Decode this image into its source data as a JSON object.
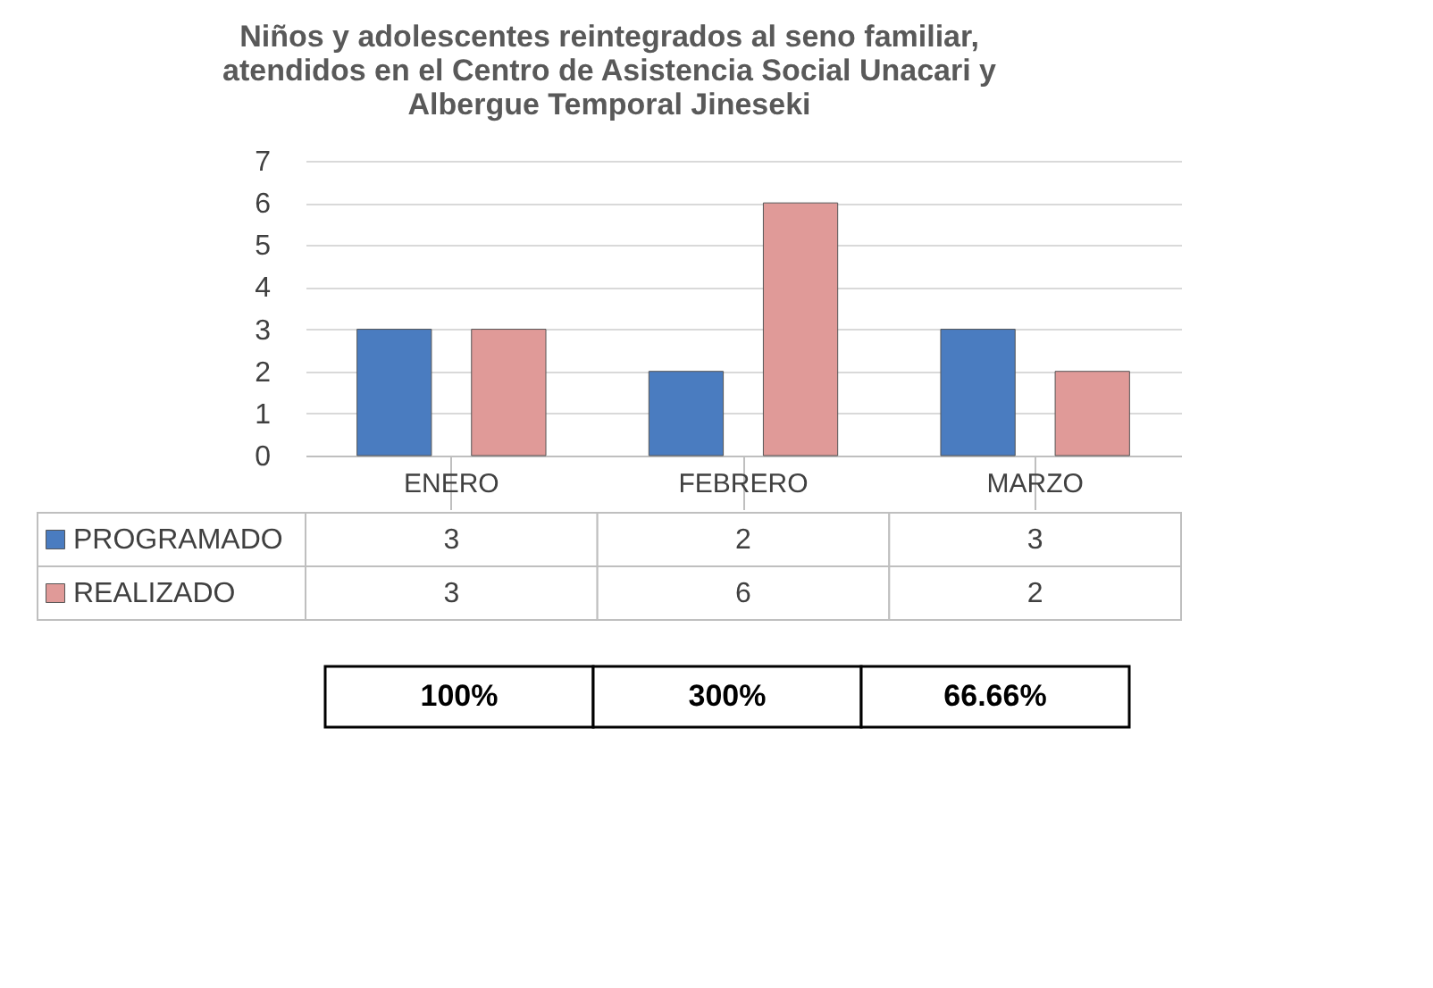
{
  "chart_data": {
    "type": "bar",
    "title": [
      "Niños y adolescentes reintegrados al seno familiar,",
      "atendidos en el Centro de Asistencia Social  Unacari y",
      "Albergue Temporal Jineseki"
    ],
    "categories": [
      "ENERO",
      "FEBRERO",
      "MARZO"
    ],
    "series": [
      {
        "name": "PROGRAMADO",
        "color": "#4a7cc0",
        "values": [
          3,
          2,
          3
        ]
      },
      {
        "name": "REALIZADO",
        "color": "#e09a98",
        "values": [
          3,
          6,
          2
        ]
      }
    ],
    "ylim": [
      0,
      7
    ],
    "yticks": [
      0,
      1,
      2,
      3,
      4,
      5,
      6,
      7
    ],
    "grid": "y",
    "data_labels": true,
    "legend": "bottom left",
    "annotations": [
      "100%",
      "300%",
      "66.66%"
    ]
  }
}
